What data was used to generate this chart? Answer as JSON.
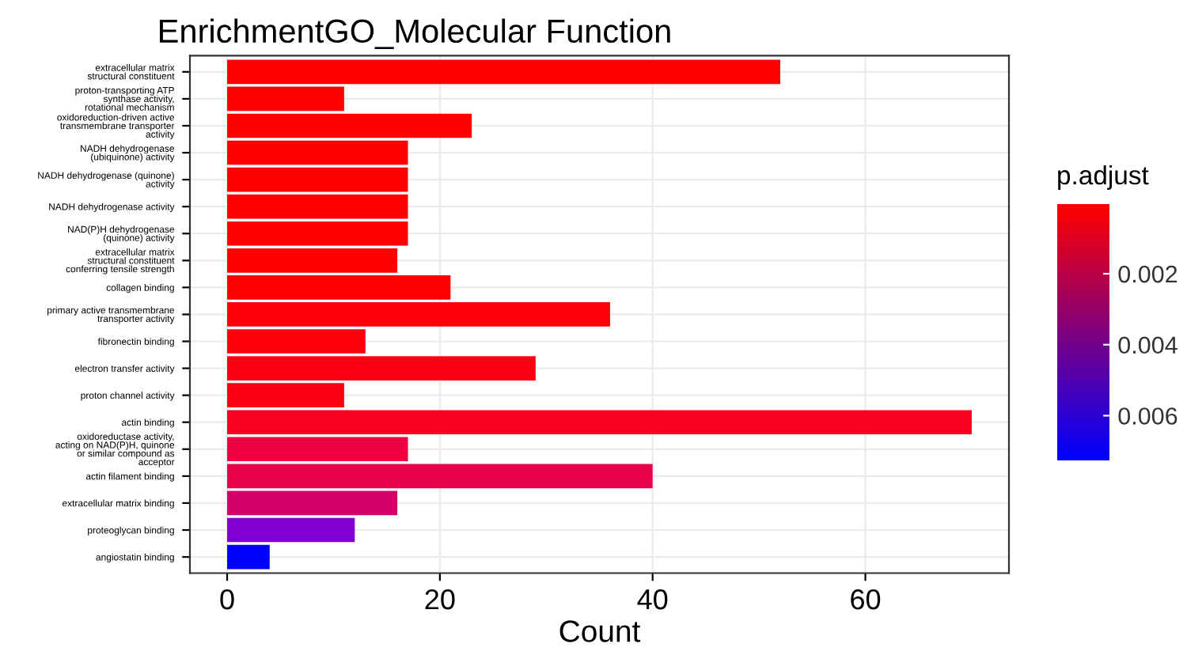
{
  "chart_data": {
    "type": "bar",
    "orientation": "horizontal",
    "title": "EnrichmentGO_Molecular Function",
    "xlabel": "Count",
    "clabel": "p.adjust",
    "categories": [
      "extracellular matrix\nstructural constituent",
      "proton-transporting ATP\nsynthase activity,\nrotational mechanism",
      "oxidoreduction-driven active\ntransmembrane transporter\nactivity",
      "NADH dehydrogenase\n(ubiquinone) activity",
      "NADH dehydrogenase (quinone)\nactivity",
      "NADH dehydrogenase activity",
      "NAD(P)H dehydrogenase\n(quinone) activity",
      "extracellular matrix\nstructural constituent\nconferring tensile strength",
      "collagen binding",
      "primary active transmembrane\ntransporter activity",
      "fibronectin binding",
      "electron transfer activity",
      "proton channel activity",
      "actin binding",
      "oxidoreductase activity,\nacting on NAD(P)H, quinone\nor similar compound as\nacceptor",
      "actin filament binding",
      "extracellular matrix binding",
      "proteoglycan binding",
      "angiostatin binding"
    ],
    "values": [
      52,
      11,
      23,
      17,
      17,
      17,
      17,
      16,
      21,
      36,
      13,
      29,
      11,
      70,
      17,
      40,
      16,
      12,
      4
    ],
    "colors": [
      "#ff0000",
      "#ff0000",
      "#ff0000",
      "#ff0000",
      "#ff0000",
      "#ff0000",
      "#ff0000",
      "#ff0000",
      "#ff0000",
      "#fe0008",
      "#fd000c",
      "#fb0010",
      "#fa0014",
      "#f80020",
      "#ee0040",
      "#e8004a",
      "#d4006a",
      "#8000d4",
      "#0000ff"
    ],
    "xlim": [
      -3.5,
      73.5
    ],
    "xticks": [
      0,
      20,
      40,
      60
    ],
    "grid": true,
    "clim": [
      0.0001,
      0.0073
    ],
    "cticks": [
      0.002,
      0.004,
      0.006
    ]
  }
}
